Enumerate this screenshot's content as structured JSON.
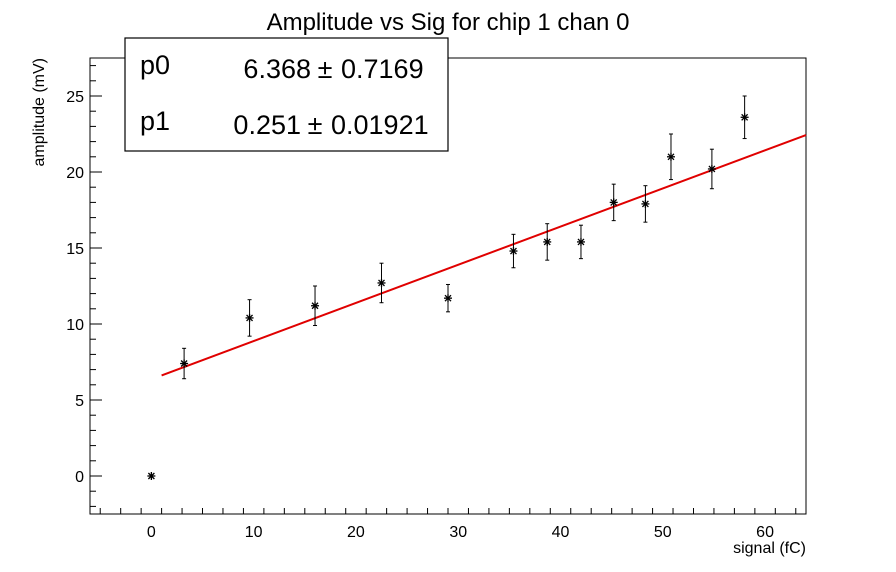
{
  "chart_data": {
    "type": "scatter",
    "title": "Amplitude vs Sig for chip 1 chan 0",
    "xlabel": "signal (fC)",
    "ylabel": "amplitude (mV)",
    "xlim": [
      -6,
      64
    ],
    "ylim": [
      -2.5,
      27.5
    ],
    "grid": false,
    "x_ticks": [
      0,
      10,
      20,
      30,
      40,
      50,
      60
    ],
    "y_ticks": [
      0,
      5,
      10,
      15,
      20,
      25
    ],
    "points": [
      {
        "x": 0,
        "y": 0,
        "err": 0
      },
      {
        "x": 3.2,
        "y": 7.4,
        "err": 1.0
      },
      {
        "x": 9.6,
        "y": 10.4,
        "err": 1.2
      },
      {
        "x": 16.0,
        "y": 11.2,
        "err": 1.3
      },
      {
        "x": 22.5,
        "y": 12.7,
        "err": 1.3
      },
      {
        "x": 29.0,
        "y": 11.7,
        "err": 0.9
      },
      {
        "x": 35.4,
        "y": 14.8,
        "err": 1.1
      },
      {
        "x": 38.7,
        "y": 15.4,
        "err": 1.2
      },
      {
        "x": 42.0,
        "y": 15.4,
        "err": 1.1
      },
      {
        "x": 45.2,
        "y": 18.0,
        "err": 1.2
      },
      {
        "x": 48.3,
        "y": 17.9,
        "err": 1.2
      },
      {
        "x": 50.8,
        "y": 21.0,
        "err": 1.5
      },
      {
        "x": 54.8,
        "y": 20.2,
        "err": 1.3
      },
      {
        "x": 58.0,
        "y": 23.6,
        "err": 1.4
      }
    ],
    "fit": {
      "p0": 6.368,
      "p1": 0.251,
      "x_range": [
        1.0,
        64.0
      ],
      "color": "#e00000"
    },
    "stats": {
      "legend_position": "top-left",
      "rows": [
        {
          "name": "p0",
          "value": "6.368",
          "pm": "±",
          "error": "0.7169"
        },
        {
          "name": "p1",
          "value": "0.251",
          "pm": "±",
          "error": "0.01921"
        }
      ]
    }
  }
}
